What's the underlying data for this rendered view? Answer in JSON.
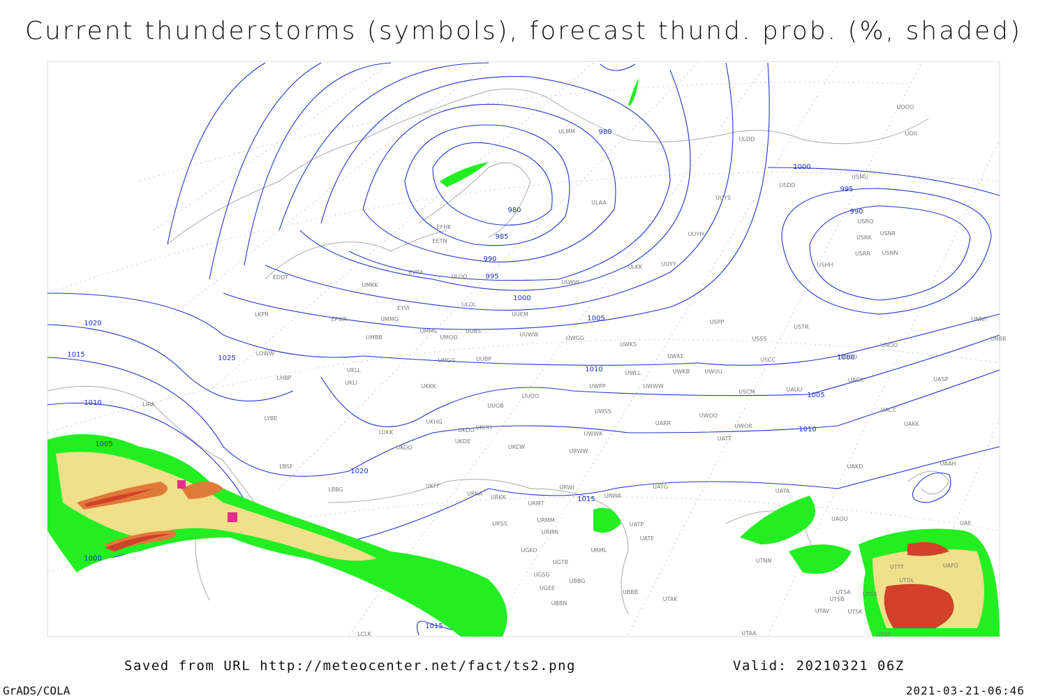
{
  "header": {
    "title": "Current thunderstorms (symbols), forecast thund. prob. (%, shaded)"
  },
  "footer": {
    "saved": "Saved from URL http://meteocenter.net/fact/ts2.png",
    "valid": "Valid: 20210321 06Z",
    "software": "GrADS/COLA",
    "timestamp": "2021-03-21-06:46"
  },
  "isobar_labels": [
    980,
    980,
    985,
    990,
    995,
    1000,
    1005,
    1010,
    1005,
    1010,
    1015,
    1020,
    1025,
    1020,
    1015,
    1010,
    1005,
    1000,
    1015,
    1000,
    995,
    990,
    1000
  ],
  "stations": [
    "ULMM",
    "ULDD",
    "UOII",
    "UOOO",
    "USMU",
    "USDD",
    "UUYS",
    "ULAA",
    "USRO",
    "USNR",
    "USRK",
    "UUYH",
    "USRR",
    "USNN",
    "USHH",
    "EFHK",
    "EETN",
    "EVRA",
    "ULOO",
    "ULKK",
    "UUYY",
    "EDDT",
    "UMKK",
    "ULWW",
    "EYVI",
    "ULOL",
    "UUEM",
    "LKPR",
    "EPWA",
    "UMMG",
    "USPP",
    "USTR",
    "UMMS",
    "UUBS",
    "UUWW",
    "UMOO",
    "UWGG",
    "USSS",
    "UNOO",
    "UNBB",
    "UMBB",
    "UWKS",
    "LOWW",
    "UWKE",
    "UMGG",
    "UUBP",
    "USCC",
    "UUOO",
    "UNNT",
    "UKLL",
    "UWKB",
    "UWUU",
    "UWLL",
    "LHBP",
    "UKLI",
    "UACK",
    "UASP",
    "UKKK",
    "UWPP",
    "UWWW",
    "UUOO",
    "USCM",
    "UAUU",
    "LIRA",
    "UUOB",
    "UWSS",
    "UACC",
    "LYBE",
    "UKHH",
    "UARR",
    "UWOO",
    "UWOR",
    "UAKK",
    "UKHG",
    "UKDD",
    "LUKK",
    "UWWK",
    "UATT",
    "UKDE",
    "UKOO",
    "UKCW",
    "URWW",
    "UAKD",
    "UAAH",
    "LBSF",
    "UKFF",
    "URWI",
    "UATG",
    "LBBG",
    "URKA",
    "URKK",
    "URWA",
    "UATA",
    "URMT",
    "UATP",
    "UAOO",
    "UAII",
    "URSS",
    "URMM",
    "URMN",
    "UATE",
    "UGKO",
    "URML",
    "UTNN",
    "UGTB",
    "UTTT",
    "UAFO",
    "UGSG",
    "UBBG",
    "UTDL",
    "UGEE",
    "UTSA",
    "UTSS",
    "UBBB",
    "UTAK",
    "UTSB",
    "UBBN",
    "UTAV",
    "UTSK",
    "LCLK",
    "UTAA",
    "UTST"
  ]
}
